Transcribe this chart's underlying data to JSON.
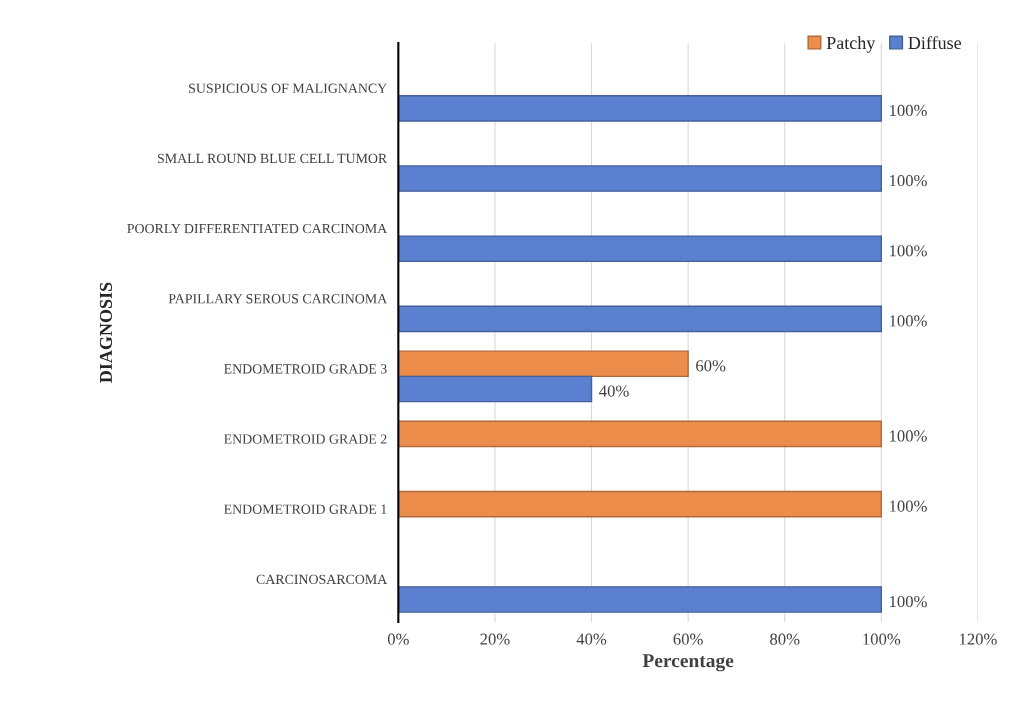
{
  "chart_data": {
    "type": "bar",
    "orientation": "horizontal",
    "xlabel": "Percentage",
    "ylabel": "DIAGNOSIS",
    "categories": [
      "SUSPICIOUS OF MALIGNANCY",
      "SMALL ROUND BLUE CELL TUMOR",
      "POORLY DIFFERENTIATED CARCINOMA",
      "PAPILLARY SEROUS CARCINOMA",
      "ENDOMETROID GRADE 3",
      "ENDOMETROID GRADE 2",
      "ENDOMETROID GRADE 1",
      "CARCINOSARCOMA"
    ],
    "series": [
      {
        "name": "Patchy",
        "color": "#ed8d4c",
        "values": [
          null,
          null,
          null,
          null,
          60,
          100,
          100,
          null
        ],
        "value_labels": [
          null,
          null,
          null,
          null,
          "60%",
          "100%",
          "100%",
          null
        ]
      },
      {
        "name": "Diffuse",
        "color": "#5b80cf",
        "values": [
          100,
          100,
          100,
          100,
          40,
          null,
          null,
          100
        ],
        "value_labels": [
          "100%",
          "100%",
          "100%",
          "100%",
          "40%",
          null,
          null,
          "100%"
        ]
      }
    ],
    "xlim": [
      0,
      120
    ],
    "xticks": [
      {
        "value": 0,
        "label": "0%"
      },
      {
        "value": 20,
        "label": "20%"
      },
      {
        "value": 40,
        "label": "40%"
      },
      {
        "value": 60,
        "label": "60%"
      },
      {
        "value": 80,
        "label": "80%"
      },
      {
        "value": 100,
        "label": "100%"
      },
      {
        "value": 120,
        "label": "120%"
      }
    ],
    "grid": "x",
    "legend": "top right"
  }
}
